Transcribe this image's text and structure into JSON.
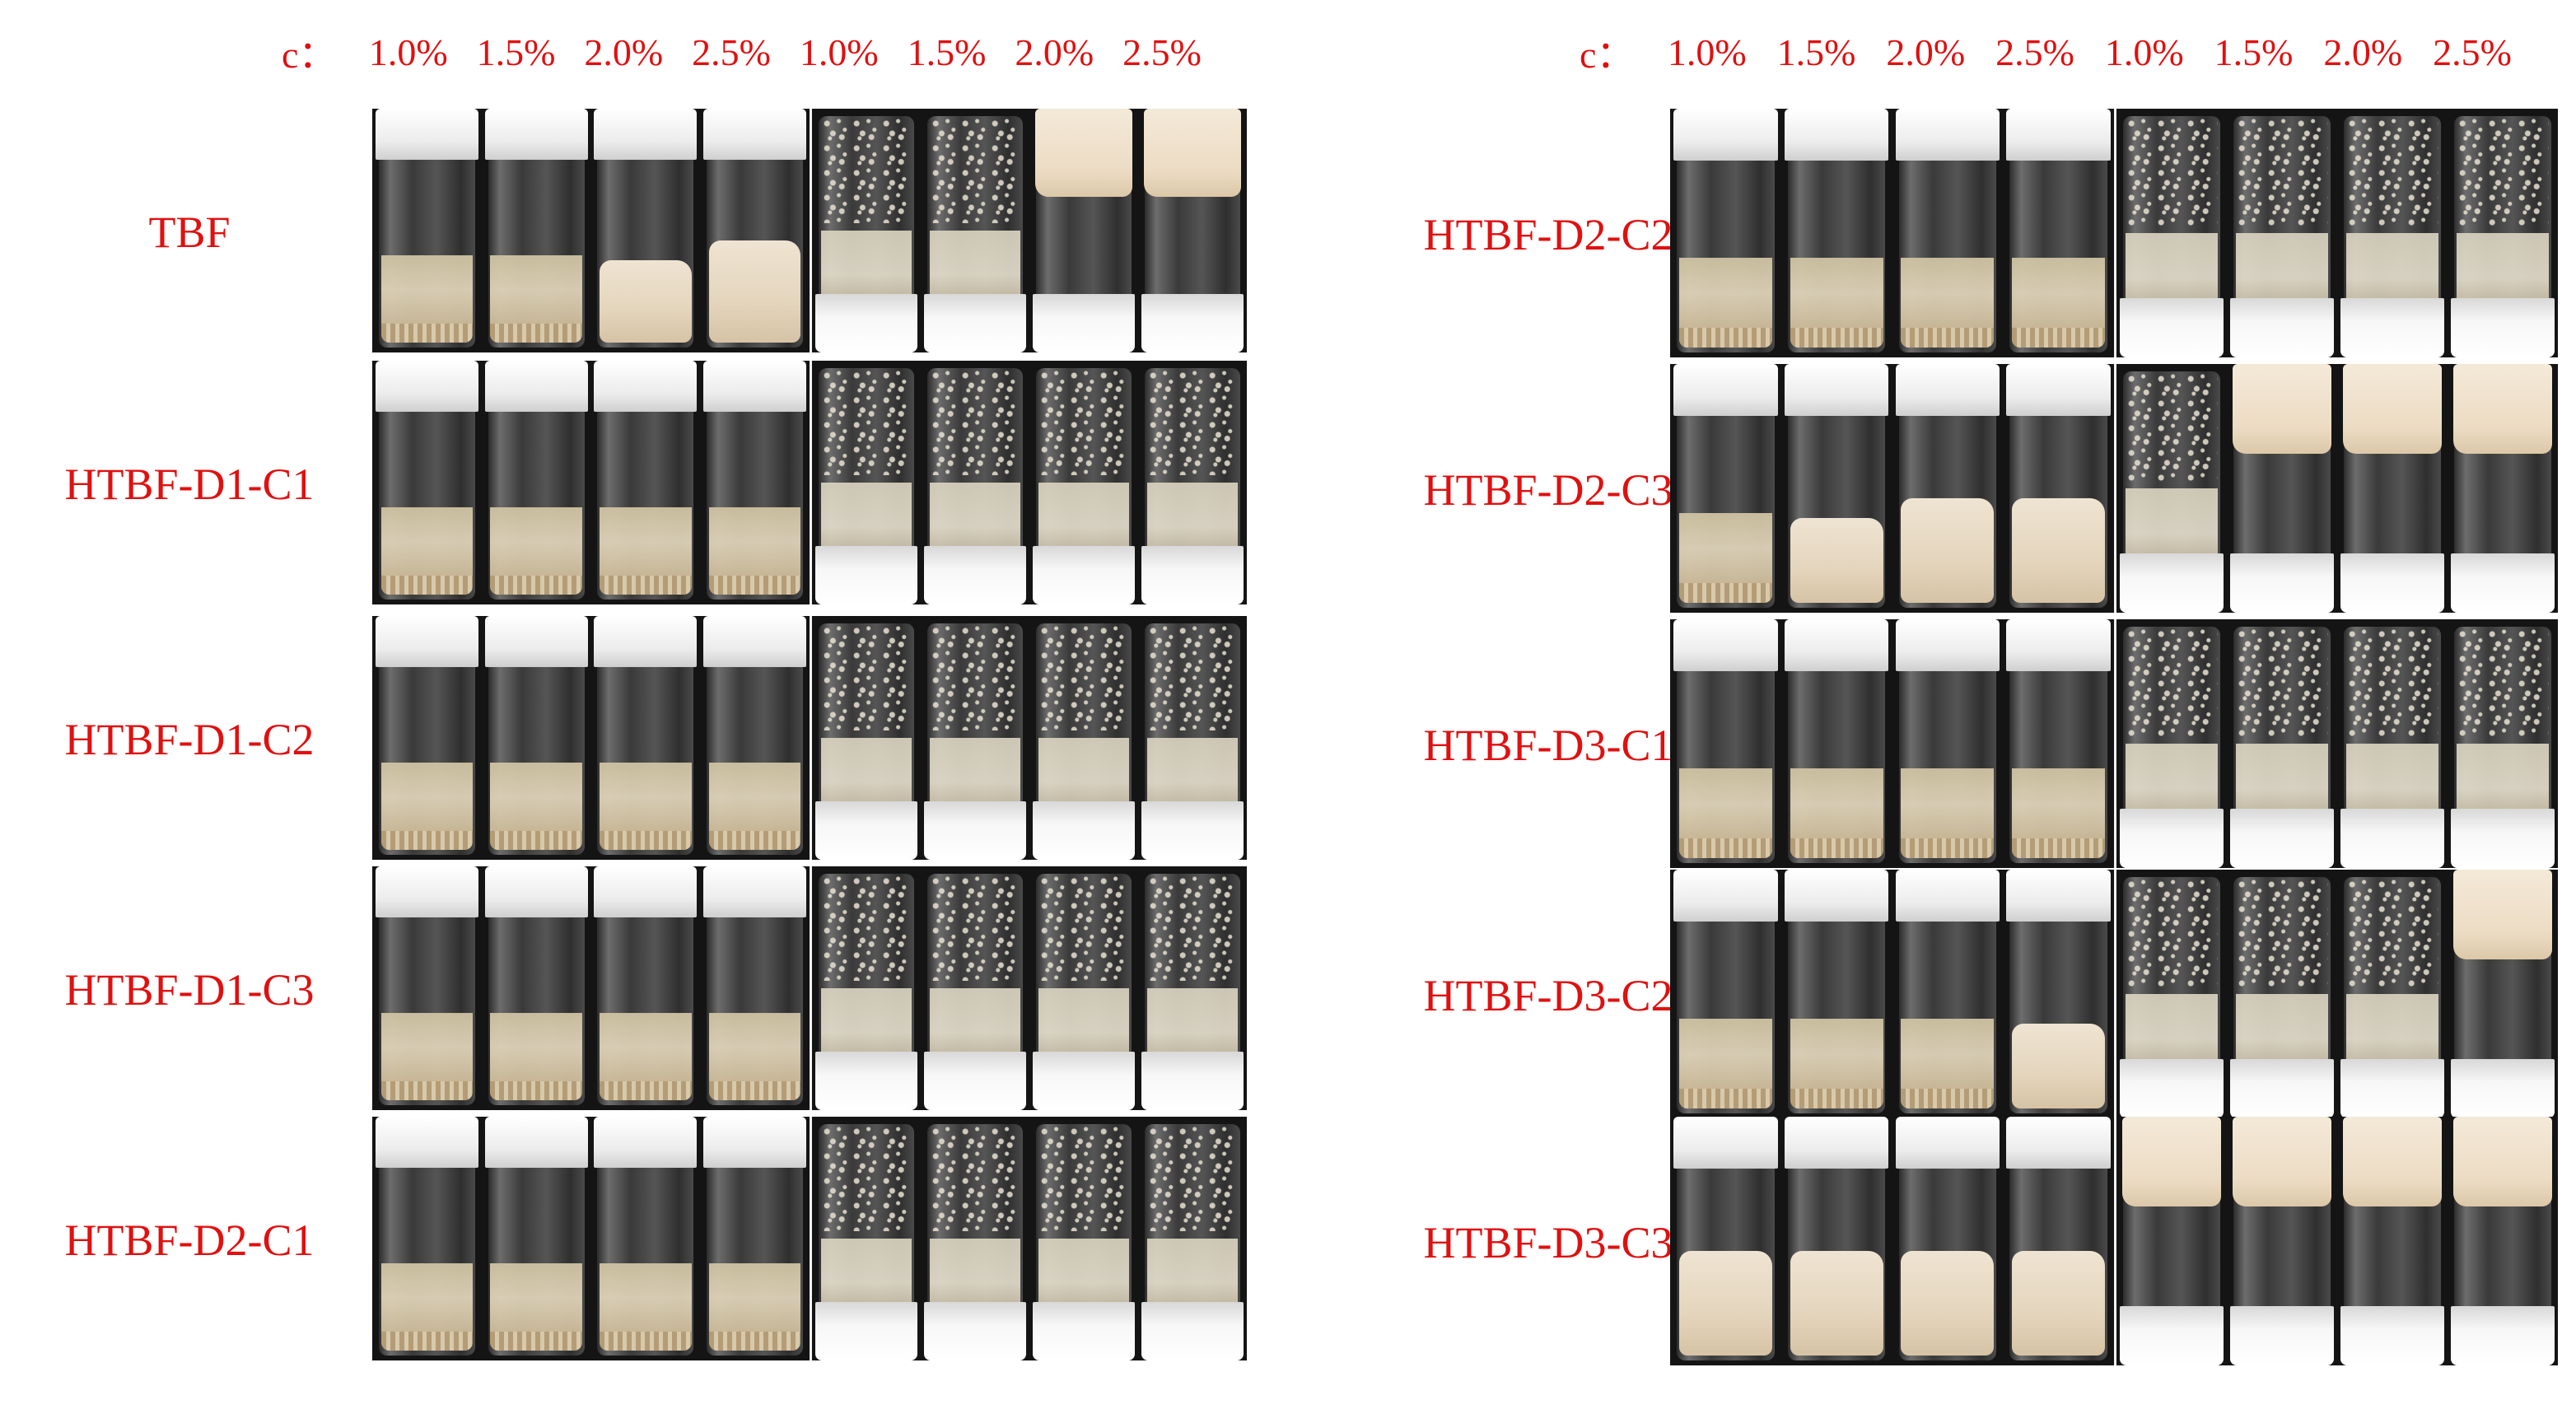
{
  "concentration_prefix": "c：",
  "concentrations": [
    "1.0%",
    "1.5%",
    "2.0%",
    "2.5%",
    "1.0%",
    "1.5%",
    "2.0%",
    "2.5%"
  ],
  "panels": [
    {
      "rows": [
        {
          "label": "TBF",
          "upright": [
            "sed",
            "sed",
            "gel-s",
            "gel-m"
          ],
          "inverted": [
            "flow",
            "flow",
            "gel",
            "gel"
          ]
        },
        {
          "label": "HTBF-D1-C1",
          "upright": [
            "sed",
            "sed",
            "sed",
            "sed"
          ],
          "inverted": [
            "flow",
            "flow",
            "flow",
            "flow"
          ]
        },
        {
          "label": "HTBF-D1-C2",
          "upright": [
            "sed",
            "sed",
            "sed",
            "sed"
          ],
          "inverted": [
            "flow",
            "flow",
            "flow",
            "flow"
          ]
        },
        {
          "label": "HTBF-D1-C3",
          "upright": [
            "sed",
            "sed",
            "sed",
            "sed"
          ],
          "inverted": [
            "flow",
            "flow",
            "flow",
            "flow"
          ]
        },
        {
          "label": "HTBF-D2-C1",
          "upright": [
            "sed",
            "sed",
            "sed",
            "sed"
          ],
          "inverted": [
            "flow",
            "flow",
            "flow",
            "flow"
          ]
        }
      ]
    },
    {
      "rows": [
        {
          "label": "HTBF-D2-C2",
          "upright": [
            "sed",
            "sed",
            "sed",
            "sed"
          ],
          "inverted": [
            "flow",
            "flow",
            "flow",
            "flow"
          ]
        },
        {
          "label": "HTBF-D2-C3",
          "upright": [
            "sed",
            "gel-s",
            "gel-m",
            "gel-m"
          ],
          "inverted": [
            "flow",
            "gel",
            "gel",
            "gel"
          ]
        },
        {
          "label": "HTBF-D3-C1",
          "upright": [
            "sed",
            "sed",
            "sed",
            "sed"
          ],
          "inverted": [
            "flow",
            "flow",
            "flow",
            "flow"
          ]
        },
        {
          "label": "HTBF-D3-C2",
          "upright": [
            "sed",
            "sed",
            "sed",
            "gel-s"
          ],
          "inverted": [
            "flow",
            "flow",
            "flow",
            "gel"
          ]
        },
        {
          "label": "HTBF-D3-C3",
          "upright": [
            "gel-m",
            "gel-m",
            "gel-m",
            "gel-m"
          ],
          "inverted": [
            "gel",
            "gel",
            "gel",
            "gel"
          ]
        }
      ]
    }
  ]
}
